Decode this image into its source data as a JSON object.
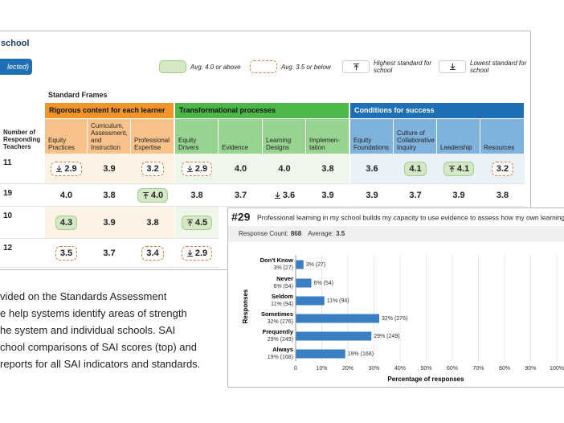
{
  "header": {
    "title": "school",
    "button": "lected)"
  },
  "legend": [
    {
      "label": "Avg. 4.0 or above",
      "kind": "above"
    },
    {
      "label": "Avg. 3.5 or below",
      "kind": "below"
    },
    {
      "label": "Highest standard for school",
      "kind": "high"
    },
    {
      "label": "Lowest standard for school",
      "kind": "low"
    }
  ],
  "table": {
    "caption": "Standard Frames",
    "row_header": "Number of Responding Teachers",
    "groups": [
      {
        "name": "Rigorous content for each learner",
        "color": "#f0952a",
        "header_color": "#f8c28a",
        "cell_color": "#fdf2e6",
        "columns": [
          "Equity Practices",
          "Curriculum, Assessment, and Instruction",
          "Professional Expertise"
        ]
      },
      {
        "name": "Transformational processes",
        "color": "#4cb848",
        "header_color": "#97d48f",
        "cell_color": "#eef7ea",
        "columns": [
          "Equity Drivers",
          "Evidence",
          "Learning Designs",
          "Implemen-tation"
        ]
      },
      {
        "name": "Conditions for success",
        "color": "#1f6fb5",
        "header_color": "#7fb2dd",
        "cell_color": "#eaf2f9",
        "columns": [
          "Equity Foundations",
          "Culture of Collaborative Inquiry",
          "Leadership",
          "Resources"
        ]
      }
    ],
    "rows": [
      {
        "label": "11",
        "cells": [
          {
            "text": "2.9",
            "fill": "below",
            "marker": "low"
          },
          {
            "text": "3.9"
          },
          {
            "text": "3.2",
            "fill": "below"
          },
          {
            "text": "2.9",
            "fill": "below",
            "marker": "low"
          },
          {
            "text": "4.0"
          },
          {
            "text": "4.0"
          },
          {
            "text": "3.8"
          },
          {
            "text": "3.6"
          },
          {
            "text": "4.1",
            "fill": "above"
          },
          {
            "text": "4.1",
            "fill": "above",
            "marker": "high"
          },
          {
            "text": "3.2",
            "fill": "below"
          }
        ]
      },
      {
        "label": "19",
        "cells": [
          {
            "text": "4.0"
          },
          {
            "text": "3.8"
          },
          {
            "text": "4.0",
            "fill": "above",
            "marker": "high"
          },
          {
            "text": "3.8"
          },
          {
            "text": "3.7"
          },
          {
            "text": "3.6",
            "marker": "low"
          },
          {
            "text": "3.9"
          },
          {
            "text": "3.9"
          },
          {
            "text": "3.7"
          },
          {
            "text": "3.9"
          },
          {
            "text": "3.8"
          }
        ]
      },
      {
        "label": "10",
        "cells": [
          {
            "text": "4.3",
            "fill": "above"
          },
          {
            "text": "3.9"
          },
          {
            "text": "3.8"
          },
          {
            "text": "4.5",
            "fill": "above",
            "marker": "high"
          }
        ]
      },
      {
        "label": "12",
        "cells": [
          {
            "text": "3.5",
            "fill": "below"
          },
          {
            "text": "3.7"
          },
          {
            "text": "3.4",
            "fill": "below"
          },
          {
            "text": "2.9",
            "fill": "below",
            "marker": "low"
          }
        ]
      }
    ]
  },
  "body_text": [
    "vided on the Standards Assessment",
    "e help systems identify areas of strength",
    "he system and individual schools. SAI",
    "chool comparisons of SAI scores (top) and",
    "reports for all SAI indicators and standards."
  ],
  "chart_data": {
    "type": "hbar",
    "number": "#29",
    "title": "Professional learning in my school builds my capacity to use evidence to assess how my own learning",
    "stats": [
      {
        "label": "Response Count:",
        "value": "868"
      },
      {
        "label": "Average:",
        "value": "3.5"
      }
    ],
    "categories": [
      "Don't Know",
      "Never",
      "Seldom",
      "Sometimes",
      "Frequently",
      "Always"
    ],
    "values": [
      3,
      6,
      11,
      32,
      29,
      19
    ],
    "value_labels": [
      "3% (27)",
      "6% (54)",
      "11% (94)",
      "32% (276)",
      "29% (249)",
      "19% (168)"
    ],
    "color": "#3a7fc1",
    "xlim": [
      0,
      100
    ],
    "xticks": [
      0,
      {
        "value": 10,
        "label": "10%"
      },
      {
        "value": 20,
        "label": "20%"
      },
      {
        "value": 30,
        "label": "30%"
      },
      {
        "value": 40,
        "label": "40%"
      },
      {
        "value": 50,
        "label": "50%"
      },
      {
        "value": 60,
        "label": "60%"
      },
      {
        "value": 70,
        "label": "70%"
      },
      {
        "value": 80,
        "label": "80%"
      },
      {
        "value": 90,
        "label": "90%"
      },
      {
        "value": 100,
        "label": "100%"
      }
    ],
    "xlabel": "Percentage of responses",
    "ylabel": "Responses",
    "grid": true
  }
}
